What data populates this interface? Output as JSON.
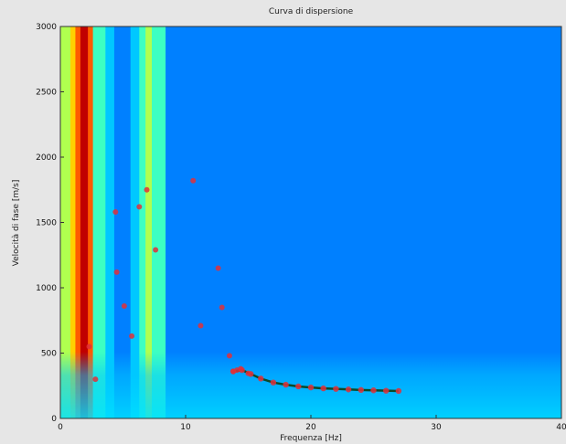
{
  "chart_data": {
    "type": "heatmap",
    "title": "Curva di dispersione",
    "xlabel": "Frequenza [Hz]",
    "ylabel": "Velocità di fase [m/s]",
    "xlim": [
      0,
      40
    ],
    "ylim": [
      0,
      3000
    ],
    "x_ticks": [
      0,
      10,
      20,
      30,
      40
    ],
    "y_ticks": [
      0,
      500,
      1000,
      1500,
      2000,
      2500,
      3000
    ],
    "x_tick_labels": [
      "0",
      "10",
      "20",
      "30",
      "40"
    ],
    "y_tick_labels": [
      "0",
      "500",
      "1000",
      "1500",
      "2000",
      "2500",
      "3000"
    ],
    "colormap": [
      "#00008f",
      "#0033cc",
      "#0080ff",
      "#00c8ff",
      "#3dffc2",
      "#b0ff4f",
      "#ffd000",
      "#ff5a00",
      "#c00000"
    ],
    "spectrum_columns": [
      {
        "f": 0.0,
        "v": 0.6
      },
      {
        "f": 0.8,
        "v": 0.74
      },
      {
        "f": 1.2,
        "v": 0.82
      },
      {
        "f": 1.6,
        "v": 0.98
      },
      {
        "f": 2.2,
        "v": 0.88
      },
      {
        "f": 2.6,
        "v": 0.55
      },
      {
        "f": 3.0,
        "v": 0.45
      },
      {
        "f": 3.6,
        "v": 0.38
      },
      {
        "f": 4.3,
        "v": 0.26
      },
      {
        "f": 5.0,
        "v": 0.2
      },
      {
        "f": 5.6,
        "v": 0.33
      },
      {
        "f": 6.3,
        "v": 0.52
      },
      {
        "f": 6.8,
        "v": 0.57
      },
      {
        "f": 7.3,
        "v": 0.54
      },
      {
        "f": 7.8,
        "v": 0.45
      },
      {
        "f": 8.4,
        "v": 0.28
      },
      {
        "f": 9.2,
        "v": 0.22
      },
      {
        "f": 10.0,
        "v": 0.2
      },
      {
        "f": 11.0,
        "v": 0.24
      },
      {
        "f": 12.0,
        "v": 0.2
      },
      {
        "f": 13.0,
        "v": 0.24
      },
      {
        "f": 14.0,
        "v": 0.2
      },
      {
        "f": 15.0,
        "v": 0.25
      },
      {
        "f": 16.0,
        "v": 0.2
      },
      {
        "f": 17.0,
        "v": 0.24
      },
      {
        "f": 18.0,
        "v": 0.2
      },
      {
        "f": 19.0,
        "v": 0.24
      },
      {
        "f": 20.0,
        "v": 0.2
      },
      {
        "f": 21.0,
        "v": 0.24
      },
      {
        "f": 22.0,
        "v": 0.2
      },
      {
        "f": 23.0,
        "v": 0.25
      },
      {
        "f": 24.0,
        "v": 0.2
      },
      {
        "f": 25.0,
        "v": 0.24
      },
      {
        "f": 26.0,
        "v": 0.2
      },
      {
        "f": 27.0,
        "v": 0.24
      },
      {
        "f": 28.0,
        "v": 0.2
      },
      {
        "f": 29.0,
        "v": 0.25
      },
      {
        "f": 30.0,
        "v": 0.2
      },
      {
        "f": 31.0,
        "v": 0.24
      },
      {
        "f": 32.0,
        "v": 0.2
      },
      {
        "f": 33.0,
        "v": 0.25
      },
      {
        "f": 34.0,
        "v": 0.2
      },
      {
        "f": 35.0,
        "v": 0.24
      },
      {
        "f": 36.0,
        "v": 0.2
      },
      {
        "f": 37.0,
        "v": 0.24
      },
      {
        "f": 38.0,
        "v": 0.2
      },
      {
        "f": 39.0,
        "v": 0.24
      },
      {
        "f": 40.0,
        "v": 0.2
      }
    ],
    "picked_points": [
      {
        "x": 2.3,
        "y": 550
      },
      {
        "x": 2.8,
        "y": 300
      },
      {
        "x": 4.4,
        "y": 1580
      },
      {
        "x": 4.5,
        "y": 1120
      },
      {
        "x": 5.1,
        "y": 860
      },
      {
        "x": 5.7,
        "y": 630
      },
      {
        "x": 6.3,
        "y": 1620
      },
      {
        "x": 6.9,
        "y": 1750
      },
      {
        "x": 7.6,
        "y": 1290
      },
      {
        "x": 10.6,
        "y": 1820
      },
      {
        "x": 11.2,
        "y": 710
      },
      {
        "x": 12.6,
        "y": 1150
      },
      {
        "x": 12.9,
        "y": 850
      },
      {
        "x": 13.5,
        "y": 480
      },
      {
        "x": 13.8,
        "y": 360
      },
      {
        "x": 14.1,
        "y": 370
      },
      {
        "x": 14.4,
        "y": 380
      },
      {
        "x": 15.0,
        "y": 345
      }
    ],
    "dispersion_curve": {
      "x": [
        13.8,
        14.5,
        15.2,
        16.0,
        17.0,
        18.0,
        19.0,
        20.0,
        21.0,
        22.0,
        23.0,
        24.0,
        25.0,
        26.0,
        27.0
      ],
      "y": [
        360,
        370,
        340,
        305,
        275,
        258,
        245,
        237,
        230,
        226,
        222,
        218,
        215,
        212,
        210
      ]
    },
    "marker_color": "#e0303a",
    "curve_color": "#0a4a2a",
    "grid": false
  }
}
